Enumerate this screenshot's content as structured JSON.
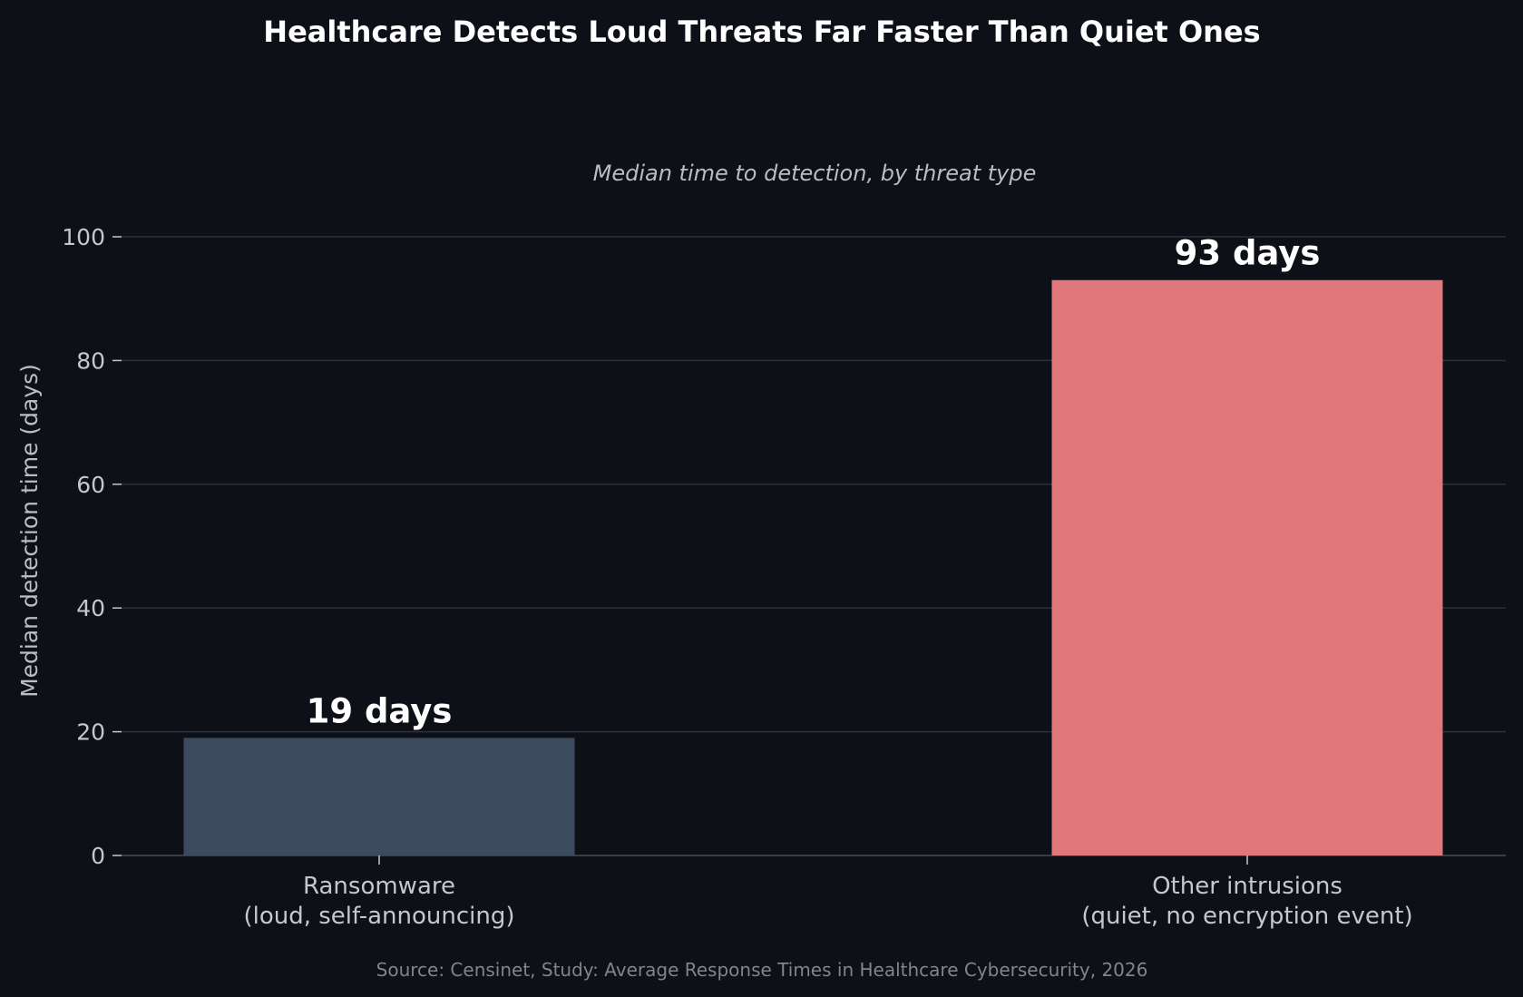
{
  "chart_data": {
    "type": "bar",
    "title": "Healthcare Detects Loud Threats Far Faster Than Quiet Ones",
    "subtitle": "Median time to detection, by threat type",
    "xlabel": "",
    "ylabel": "Median detection time (days)",
    "ylim": [
      0,
      100
    ],
    "yticks": [
      0,
      20,
      40,
      60,
      80,
      100
    ],
    "ytick_labels": [
      "0",
      "20",
      "40",
      "60",
      "80",
      "100"
    ],
    "grid": true,
    "legend": "none",
    "categories": [
      [
        "Ransomware",
        "(loud, self-announcing)"
      ],
      [
        "Other intrusions",
        "(quiet, no encryption event)"
      ]
    ],
    "values": [
      19,
      93
    ],
    "data_labels": [
      "19 days",
      "93 days"
    ],
    "colors": [
      "#3b4a5d",
      "#e0777b"
    ],
    "source": "Source: Censinet, Study: Average Response Times in Healthcare Cybersecurity, 2026"
  },
  "theme": {
    "background": "#0e1017",
    "grid_color": "#2c2f37",
    "axis_color": "#3a3d45",
    "tick_color": "#c4c7ce"
  }
}
